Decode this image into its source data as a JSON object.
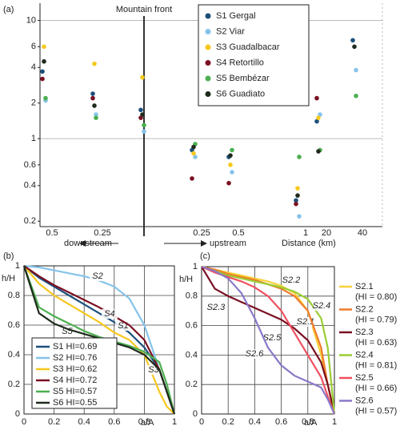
{
  "chart_data": [
    {
      "type": "scatter",
      "panel": "(a)",
      "yscale": "log",
      "grid": true,
      "annotation": "Mountain front",
      "downstream_label": "downstream",
      "upstream_label": "upstream",
      "xlabel": "Distance (km)",
      "categories": [
        "0.5",
        "0.25",
        null,
        "0.25",
        "0.5",
        "1",
        "20",
        "40"
      ],
      "ylim": [
        0.18,
        14
      ],
      "yticks": [
        0.2,
        0.4,
        0.6,
        1,
        2,
        4,
        6,
        10
      ],
      "series": [
        {
          "name": "S1 Gergal",
          "color": "#1b4f7c",
          "values": [
            3.7,
            2.4,
            1.75,
            0.8,
            0.7,
            0.3,
            1.4,
            6.8
          ]
        },
        {
          "name": "S2 Viar",
          "color": "#86c3ea",
          "values": [
            2.1,
            1.6,
            1.15,
            0.7,
            0.52,
            0.22,
            1.6,
            3.8
          ]
        },
        {
          "name": "S3 Guadalbacar",
          "color": "#f7c81e",
          "values": [
            6.0,
            4.3,
            3.3,
            0.75,
            0.6,
            0.38,
            1.5,
            null
          ]
        },
        {
          "name": "S4 Retortillo",
          "color": "#7a1022",
          "values": [
            3.2,
            2.2,
            1.5,
            0.46,
            0.42,
            0.28,
            2.2,
            null
          ]
        },
        {
          "name": "S5 Bembézar",
          "color": "#4caf50",
          "values": [
            2.2,
            1.5,
            1.3,
            0.9,
            0.8,
            0.7,
            0.8,
            2.3
          ]
        },
        {
          "name": "S6 Guadiato",
          "color": "#1f2b1c",
          "values": [
            4.5,
            1.9,
            1.6,
            0.85,
            0.72,
            0.33,
            0.78,
            6.0
          ]
        }
      ]
    },
    {
      "type": "line",
      "panel": "(b)",
      "ylabel": "h/H",
      "xlabel": "a/A",
      "xlim": [
        0,
        1
      ],
      "ylim": [
        0,
        1
      ],
      "xticks": [
        0,
        0.2,
        0.4,
        0.6,
        0.8,
        1
      ],
      "yticks": [
        0,
        0.2,
        0.4,
        0.6,
        0.8,
        1
      ],
      "grid": true,
      "x": [
        0,
        0.1,
        0.2,
        0.3,
        0.4,
        0.5,
        0.6,
        0.7,
        0.8,
        0.9,
        0.95,
        1
      ],
      "series": [
        {
          "name": "S1 HI=0.69",
          "label": "S1",
          "color": "#1b4f7c",
          "values": [
            1,
            0.92,
            0.86,
            0.8,
            0.74,
            0.68,
            0.62,
            0.55,
            0.45,
            0.3,
            0.15,
            0
          ]
        },
        {
          "name": "S2 HI=0.76",
          "label": "S2",
          "color": "#86c3ea",
          "values": [
            1,
            0.99,
            0.97,
            0.95,
            0.93,
            0.9,
            0.86,
            0.78,
            0.6,
            0.3,
            0.15,
            0
          ]
        },
        {
          "name": "S3 HI=0.62",
          "label": "S3",
          "color": "#f7c81e",
          "values": [
            1,
            0.88,
            0.8,
            0.74,
            0.68,
            0.62,
            0.55,
            0.5,
            0.4,
            0.15,
            0.05,
            0
          ]
        },
        {
          "name": "S4 HI=0.72",
          "label": "S4",
          "color": "#7a1022",
          "values": [
            1,
            0.93,
            0.87,
            0.82,
            0.77,
            0.72,
            0.66,
            0.6,
            0.5,
            0.3,
            0.15,
            0
          ]
        },
        {
          "name": "S5 HI=0.57",
          "label": "S5",
          "color": "#4caf50",
          "values": [
            1,
            0.72,
            0.66,
            0.61,
            0.56,
            0.52,
            0.49,
            0.46,
            0.42,
            0.35,
            0.2,
            0
          ]
        },
        {
          "name": "S6 HI=0.55",
          "label": "S6",
          "color": "#1f2b1c",
          "values": [
            1,
            0.68,
            0.61,
            0.57,
            0.54,
            0.51,
            0.48,
            0.45,
            0.4,
            0.3,
            0.15,
            0
          ]
        }
      ]
    },
    {
      "type": "line",
      "panel": "(c)",
      "ylabel": "h/H",
      "xlabel": "a/A",
      "xlim": [
        0,
        1
      ],
      "ylim": [
        0,
        1
      ],
      "xticks": [
        0,
        0.2,
        0.4,
        0.6,
        0.8,
        1
      ],
      "yticks": [
        0,
        0.2,
        0.4,
        0.6,
        0.8,
        1
      ],
      "grid": true,
      "x": [
        0,
        0.1,
        0.2,
        0.3,
        0.4,
        0.5,
        0.6,
        0.7,
        0.8,
        0.9,
        0.95,
        1
      ],
      "series": [
        {
          "name": "S2.1",
          "hi": "(HI = 0.80)",
          "color": "#f7d23a",
          "values": [
            1,
            0.98,
            0.96,
            0.94,
            0.92,
            0.9,
            0.87,
            0.82,
            0.7,
            0.4,
            0.2,
            0
          ]
        },
        {
          "name": "S2.2",
          "hi": "(HI = 0.79)",
          "color": "#f07a2a",
          "values": [
            1,
            0.98,
            0.95,
            0.93,
            0.91,
            0.88,
            0.85,
            0.8,
            0.7,
            0.45,
            0.2,
            0
          ]
        },
        {
          "name": "S2.3",
          "hi": "(HI = 0.63)",
          "color": "#7a1022",
          "values": [
            1,
            0.85,
            0.8,
            0.76,
            0.72,
            0.68,
            0.64,
            0.58,
            0.5,
            0.35,
            0.2,
            0
          ]
        },
        {
          "name": "S2.4",
          "hi": "(HI = 0.81)",
          "color": "#9acd32",
          "values": [
            1,
            0.97,
            0.94,
            0.92,
            0.9,
            0.88,
            0.86,
            0.83,
            0.78,
            0.65,
            0.45,
            0
          ]
        },
        {
          "name": "S2.5",
          "hi": "(HI = 0.66)",
          "color": "#ef5060",
          "values": [
            1,
            0.96,
            0.93,
            0.9,
            0.86,
            0.8,
            0.7,
            0.55,
            0.4,
            0.25,
            0.12,
            0
          ]
        },
        {
          "name": "S2.6",
          "hi": "(HI = 0.57)",
          "color": "#8a78c8",
          "values": [
            1,
            0.97,
            0.92,
            0.82,
            0.65,
            0.45,
            0.33,
            0.26,
            0.22,
            0.18,
            0.1,
            0
          ]
        }
      ]
    }
  ]
}
